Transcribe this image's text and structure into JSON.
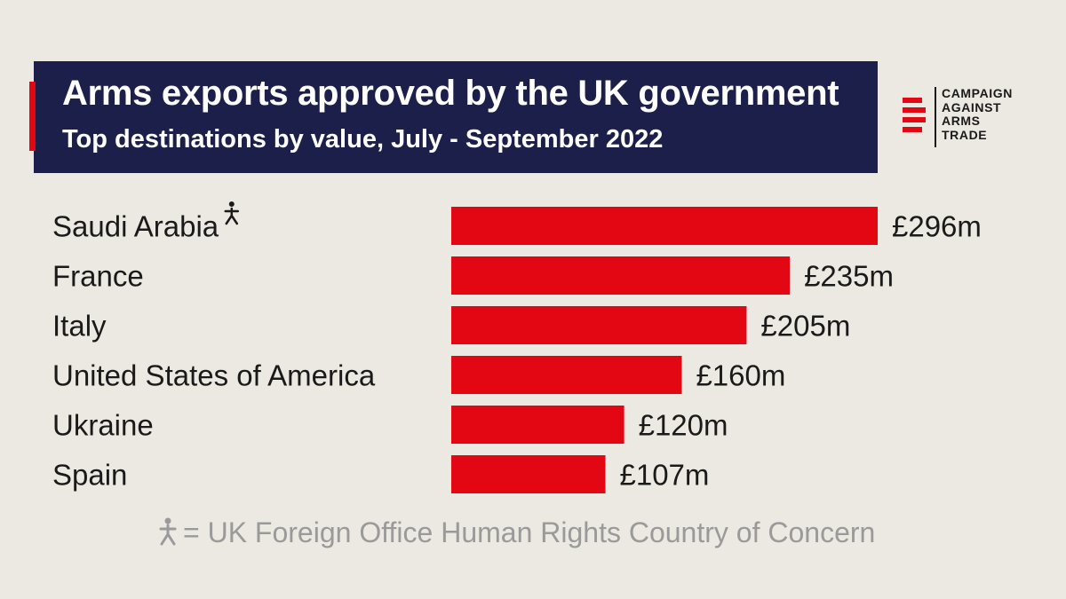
{
  "header": {
    "title": "Arms exports approved by the UK government",
    "subtitle": "Top destinations by value, July - September 2022"
  },
  "logo": {
    "lines": [
      "CAMPAIGN",
      "AGAINST",
      "ARMS",
      "TRADE"
    ],
    "icon": "caat-stripes-logo"
  },
  "colors": {
    "bar": "#e30613",
    "header_bg": "#1c1f4a",
    "background": "#ece8e2"
  },
  "footnote": {
    "icon": "person-icon",
    "text": "= UK Foreign Office Human Rights Country of Concern"
  },
  "chart_data": {
    "type": "bar",
    "orientation": "horizontal",
    "categories": [
      "Saudi Arabia",
      "France",
      "Italy",
      "United States of America",
      "Ukraine",
      "Spain"
    ],
    "values": [
      296,
      235,
      205,
      160,
      120,
      107
    ],
    "value_labels": [
      "£296m",
      "£235m",
      "£205m",
      "£160m",
      "£120m",
      "£107m"
    ],
    "country_of_concern": [
      true,
      false,
      false,
      false,
      false,
      false
    ],
    "unit": "£m",
    "xlim": [
      0,
      296
    ],
    "grid": false,
    "legend": "none"
  }
}
